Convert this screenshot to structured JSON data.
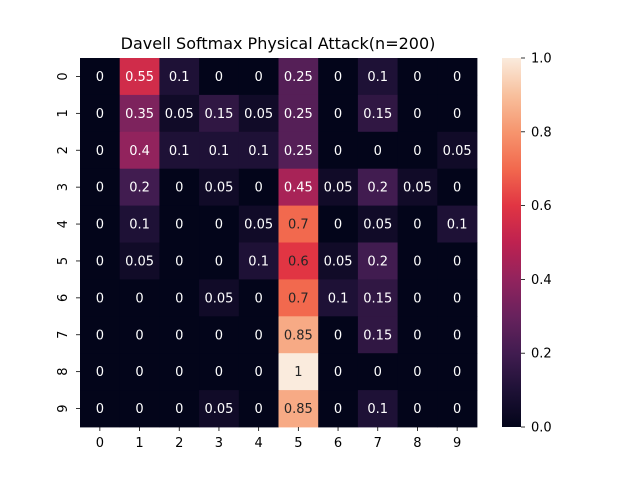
{
  "chart_data": {
    "type": "heatmap",
    "title": "Davell Softmax Physical Attack(n=200)",
    "xlabel": "",
    "ylabel": "",
    "x_categories": [
      "0",
      "1",
      "2",
      "3",
      "4",
      "5",
      "6",
      "7",
      "8",
      "9"
    ],
    "y_categories": [
      "0",
      "1",
      "2",
      "3",
      "4",
      "5",
      "6",
      "7",
      "8",
      "9"
    ],
    "values": [
      [
        0,
        0.55,
        0.1,
        0,
        0,
        0.25,
        0,
        0.1,
        0,
        0
      ],
      [
        0,
        0.35,
        0.05,
        0.15,
        0.05,
        0.25,
        0,
        0.15,
        0,
        0
      ],
      [
        0,
        0.4,
        0.1,
        0.1,
        0.1,
        0.25,
        0,
        0,
        0,
        0.05
      ],
      [
        0,
        0.2,
        0,
        0.05,
        0,
        0.45,
        0.05,
        0.2,
        0.05,
        0
      ],
      [
        0,
        0.1,
        0,
        0,
        0.05,
        0.7,
        0,
        0.05,
        0,
        0.1
      ],
      [
        0,
        0.05,
        0,
        0,
        0.1,
        0.6,
        0.05,
        0.2,
        0,
        0
      ],
      [
        0,
        0,
        0,
        0.05,
        0,
        0.7,
        0.1,
        0.15,
        0,
        0
      ],
      [
        0,
        0,
        0,
        0,
        0,
        0.85,
        0,
        0.15,
        0,
        0
      ],
      [
        0,
        0,
        0,
        0,
        0,
        1,
        0,
        0,
        0,
        0
      ],
      [
        0,
        0,
        0,
        0.05,
        0,
        0.85,
        0,
        0.1,
        0,
        0
      ]
    ],
    "annotations": true,
    "colormap": "rocket",
    "vmin": 0.0,
    "vmax": 1.0,
    "colorbar_ticks": [
      "0.0",
      "0.2",
      "0.4",
      "0.6",
      "0.8",
      "1.0"
    ],
    "grid": false
  }
}
